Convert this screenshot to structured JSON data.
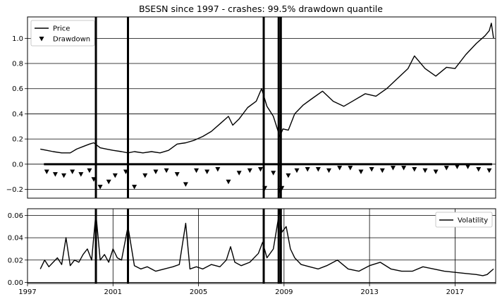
{
  "chart_data": [
    {
      "type": "line",
      "title": "BSESN since 1997 - crashes: 99.5% drawdown quantile",
      "xlabel": "",
      "ylabel": "",
      "xlim": [
        1997.0,
        2018.9
      ],
      "ylim": [
        -0.27,
        1.17
      ],
      "grid": "horizontal",
      "legend": {
        "placement": "top-left",
        "entries": [
          "Price",
          "Drawdown"
        ]
      },
      "yticks": [
        -0.2,
        0.0,
        0.2,
        0.4,
        0.6,
        0.8,
        1.0
      ],
      "ytick_labels": [
        "−0.2",
        "0.0",
        "0.2",
        "0.4",
        "0.6",
        "0.8",
        "1.0"
      ],
      "series": [
        {
          "name": "Price",
          "style": "line",
          "x": [
            1997.6,
            1997.9,
            1998.2,
            1998.6,
            1999.0,
            1999.3,
            1999.6,
            1999.9,
            2000.1,
            2000.4,
            2000.7,
            2001.0,
            2001.4,
            2001.7,
            2002.0,
            2002.4,
            2002.8,
            2003.2,
            2003.6,
            2004.0,
            2004.4,
            2004.8,
            2005.2,
            2005.6,
            2006.0,
            2006.4,
            2006.6,
            2006.9,
            2007.3,
            2007.7,
            2007.95,
            2008.2,
            2008.5,
            2008.8,
            2008.95,
            2009.2,
            2009.5,
            2009.9,
            2010.3,
            2010.8,
            2011.3,
            2011.8,
            2012.3,
            2012.8,
            2013.3,
            2013.8,
            2014.3,
            2014.8,
            2015.1,
            2015.6,
            2016.1,
            2016.6,
            2017.0,
            2017.5,
            2018.0,
            2018.4,
            2018.6,
            2018.7,
            2018.8
          ],
          "y": [
            0.12,
            0.11,
            0.1,
            0.09,
            0.09,
            0.12,
            0.14,
            0.16,
            0.17,
            0.13,
            0.12,
            0.11,
            0.1,
            0.09,
            0.1,
            0.09,
            0.1,
            0.09,
            0.11,
            0.16,
            0.17,
            0.19,
            0.22,
            0.26,
            0.32,
            0.38,
            0.31,
            0.36,
            0.45,
            0.5,
            0.6,
            0.46,
            0.38,
            0.22,
            0.28,
            0.27,
            0.4,
            0.47,
            0.52,
            0.58,
            0.5,
            0.46,
            0.51,
            0.56,
            0.54,
            0.6,
            0.68,
            0.76,
            0.86,
            0.76,
            0.7,
            0.77,
            0.76,
            0.87,
            0.96,
            1.02,
            1.06,
            1.12,
            1.0
          ]
        },
        {
          "name": "Drawdown",
          "style": "markers",
          "marker": "down-triangle",
          "x": [
            1997.9,
            1998.3,
            1998.7,
            1999.1,
            1999.5,
            1999.9,
            2000.1,
            2000.4,
            2000.8,
            2001.1,
            2001.6,
            2002.0,
            2002.5,
            2003.0,
            2003.5,
            2004.0,
            2004.4,
            2004.9,
            2005.4,
            2005.9,
            2006.4,
            2006.9,
            2007.4,
            2007.9,
            2008.1,
            2008.5,
            2008.8,
            2008.9,
            2009.2,
            2009.6,
            2010.1,
            2010.6,
            2011.1,
            2011.6,
            2012.1,
            2012.6,
            2013.1,
            2013.6,
            2014.1,
            2014.6,
            2015.1,
            2015.6,
            2016.1,
            2016.6,
            2017.1,
            2017.6,
            2018.1,
            2018.6
          ],
          "y": [
            -0.06,
            -0.08,
            -0.09,
            -0.06,
            -0.08,
            -0.05,
            -0.12,
            -0.18,
            -0.14,
            -0.09,
            -0.06,
            -0.18,
            -0.09,
            -0.06,
            -0.05,
            -0.08,
            -0.16,
            -0.05,
            -0.06,
            -0.04,
            -0.14,
            -0.07,
            -0.05,
            -0.04,
            -0.19,
            -0.07,
            -0.21,
            -0.19,
            -0.09,
            -0.05,
            -0.04,
            -0.04,
            -0.05,
            -0.03,
            -0.03,
            -0.06,
            -0.04,
            -0.05,
            -0.03,
            -0.03,
            -0.04,
            -0.05,
            -0.06,
            -0.03,
            -0.02,
            -0.02,
            -0.04,
            -0.05
          ]
        }
      ],
      "crash_lines_x": [
        2000.2,
        2001.7,
        2008.05,
        2008.75,
        2008.85
      ]
    },
    {
      "type": "line",
      "title": "",
      "xlabel": "",
      "ylabel": "",
      "xlim": [
        1997.0,
        2018.9
      ],
      "ylim": [
        -0.001,
        0.066
      ],
      "grid": "both",
      "legend": {
        "placement": "top-right",
        "entries": [
          "Volatility"
        ]
      },
      "yticks": [
        0.0,
        0.02,
        0.04,
        0.06
      ],
      "ytick_labels": [
        "0.00",
        "0.02",
        "0.04",
        "0.06"
      ],
      "xticks": [
        1997,
        2001,
        2005,
        2009,
        2013,
        2017
      ],
      "xtick_labels": [
        "1997",
        "2001",
        "2005",
        "2009",
        "2013",
        "2017"
      ],
      "series": [
        {
          "name": "Volatility",
          "x": [
            1997.6,
            1997.8,
            1998.0,
            1998.2,
            1998.4,
            1998.6,
            1998.8,
            1999.0,
            1999.2,
            1999.4,
            1999.6,
            1999.8,
            2000.0,
            2000.2,
            2000.4,
            2000.6,
            2000.8,
            2001.0,
            2001.2,
            2001.4,
            2001.7,
            2002.0,
            2002.3,
            2002.6,
            2003.0,
            2003.4,
            2003.8,
            2004.1,
            2004.4,
            2004.6,
            2004.9,
            2005.2,
            2005.6,
            2006.0,
            2006.3,
            2006.5,
            2006.7,
            2007.0,
            2007.4,
            2007.8,
            2008.0,
            2008.2,
            2008.5,
            2008.8,
            2008.9,
            2009.1,
            2009.3,
            2009.5,
            2009.8,
            2010.2,
            2010.6,
            2011.0,
            2011.5,
            2012.0,
            2012.5,
            2013.0,
            2013.5,
            2014.0,
            2014.5,
            2015.0,
            2015.5,
            2016.0,
            2016.5,
            2017.0,
            2017.5,
            2018.0,
            2018.3,
            2018.5,
            2018.8
          ],
          "y": [
            0.012,
            0.02,
            0.014,
            0.018,
            0.022,
            0.016,
            0.04,
            0.015,
            0.02,
            0.018,
            0.025,
            0.03,
            0.02,
            0.062,
            0.02,
            0.025,
            0.018,
            0.03,
            0.022,
            0.02,
            0.05,
            0.015,
            0.012,
            0.014,
            0.01,
            0.012,
            0.014,
            0.016,
            0.053,
            0.012,
            0.014,
            0.012,
            0.016,
            0.014,
            0.02,
            0.032,
            0.018,
            0.015,
            0.018,
            0.026,
            0.036,
            0.022,
            0.03,
            0.065,
            0.045,
            0.05,
            0.03,
            0.022,
            0.016,
            0.014,
            0.012,
            0.015,
            0.02,
            0.012,
            0.01,
            0.015,
            0.018,
            0.012,
            0.01,
            0.01,
            0.014,
            0.012,
            0.01,
            0.009,
            0.008,
            0.007,
            0.006,
            0.007,
            0.012
          ]
        }
      ],
      "crash_lines_x": [
        2000.2,
        2001.7,
        2008.05,
        2008.75,
        2008.85
      ]
    }
  ]
}
